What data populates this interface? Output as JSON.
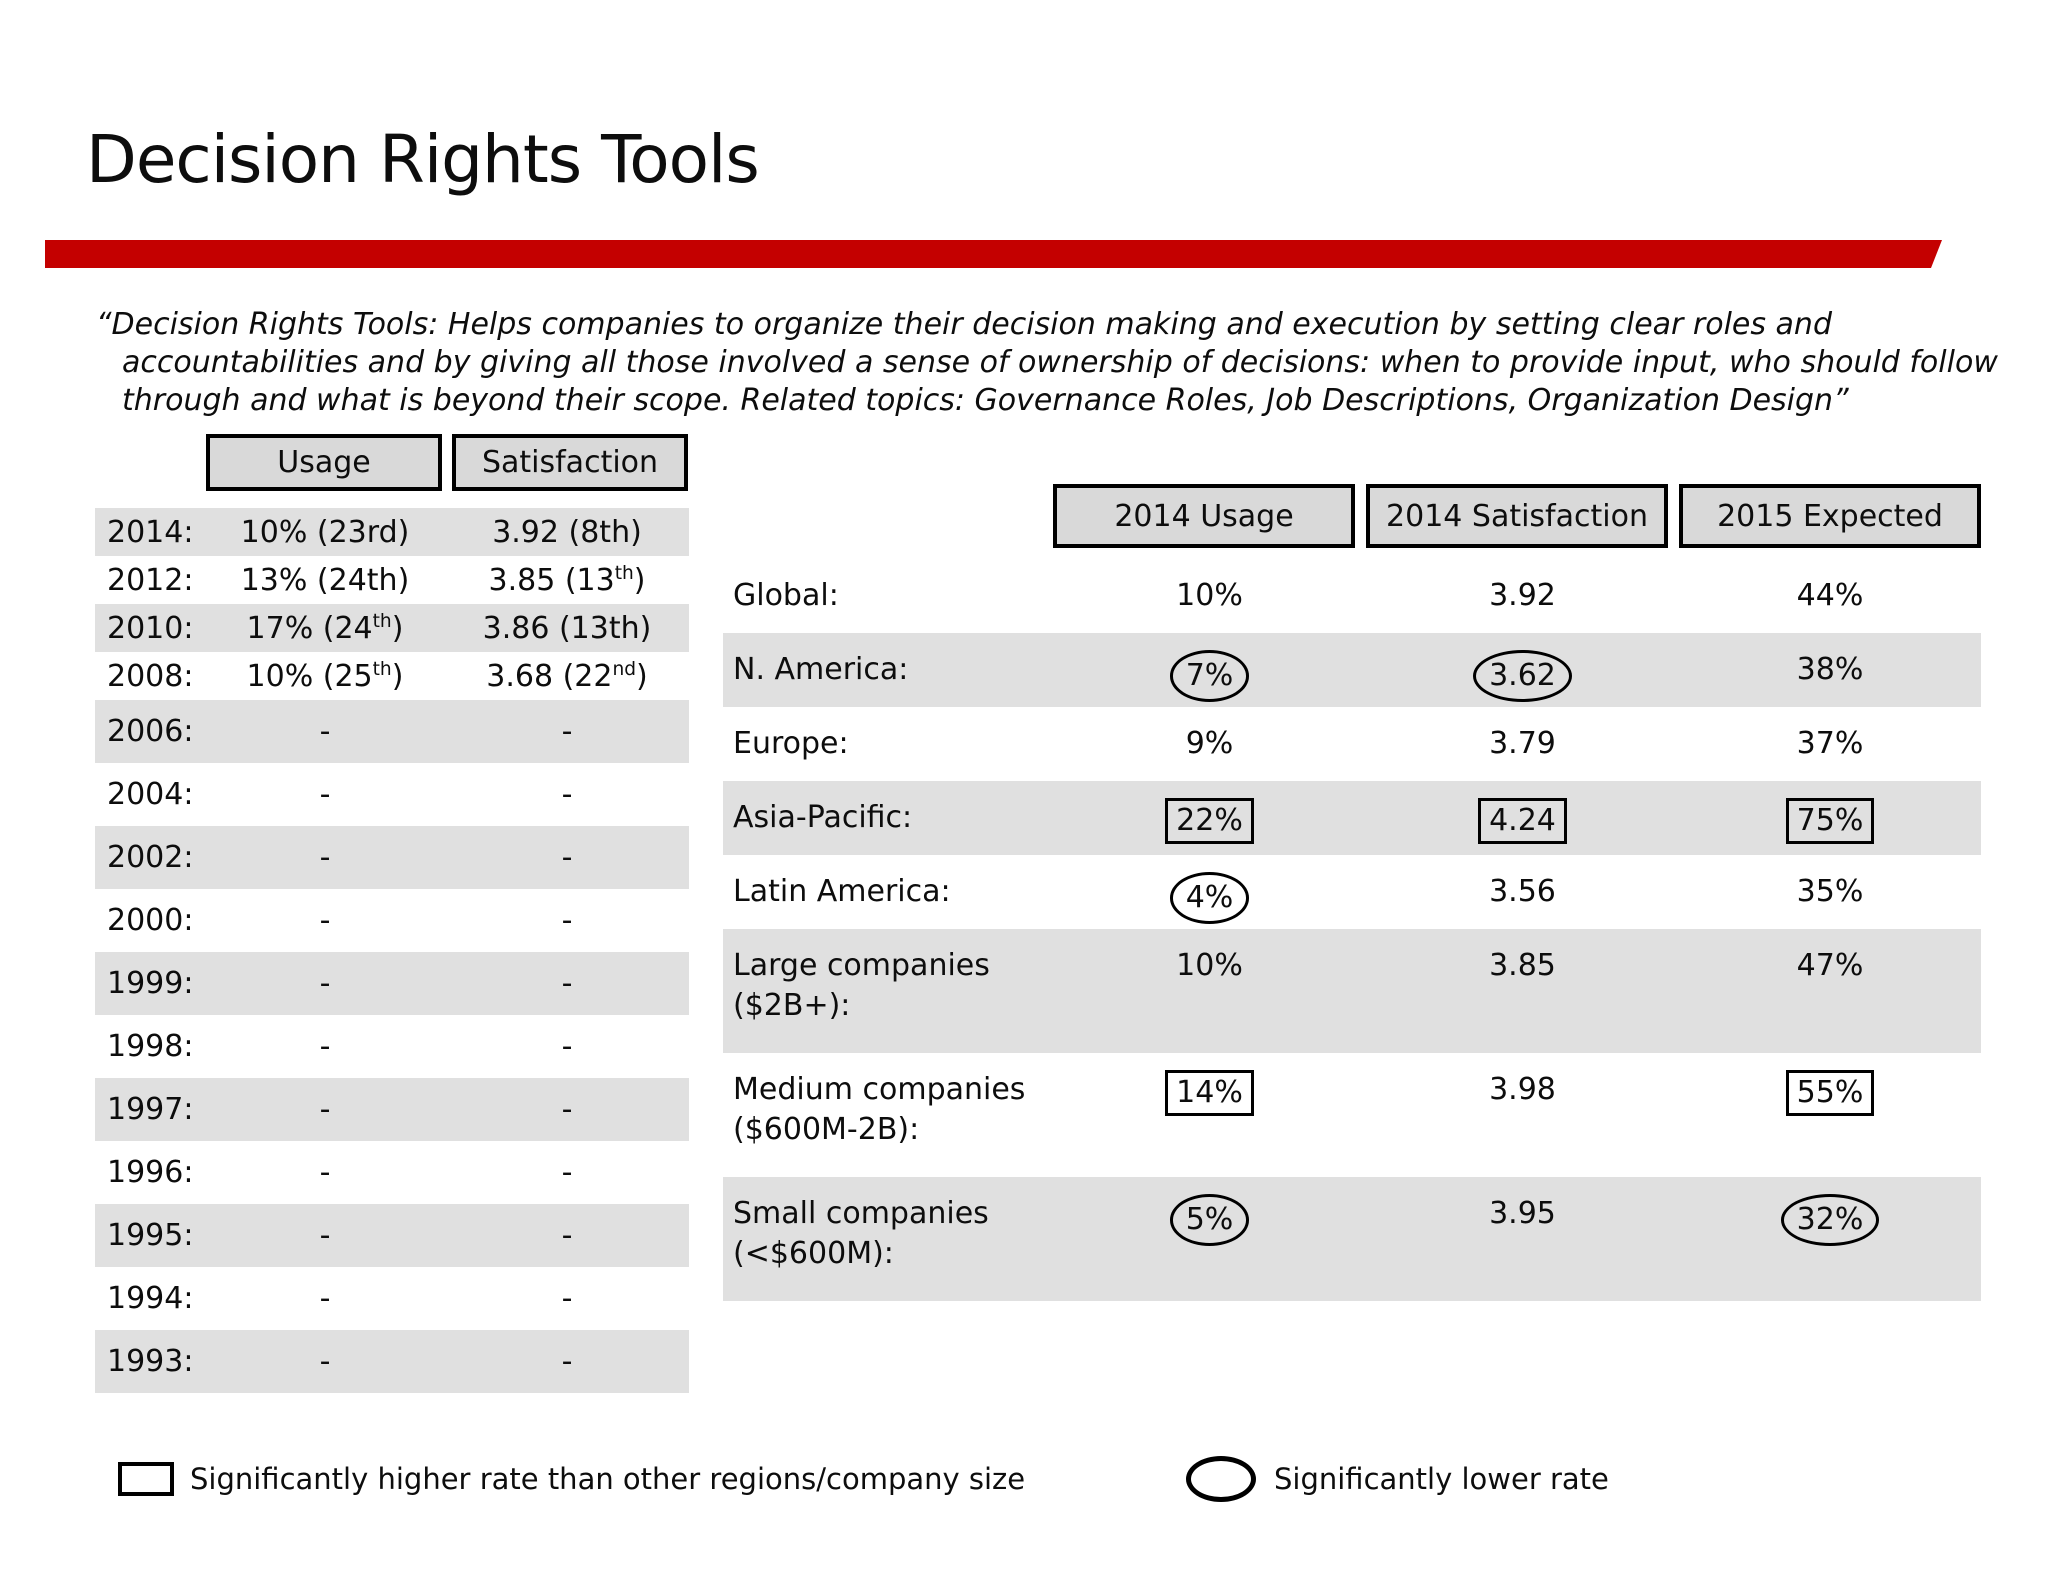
{
  "title": "Decision Rights Tools",
  "quote": "“Decision Rights Tools: Helps companies to organize their decision making and execution by setting clear roles and accountabilities and by giving all those involved a sense of ownership of decisions: when to provide input, who should follow through and what is beyond their scope. Related topics: Governance Roles, Job Descriptions, Organization Design”",
  "colors": {
    "accent": "#C40000",
    "band": "#E0E0E0",
    "header_fill": "#D9D9D9"
  },
  "history": {
    "headers": {
      "usage": "Usage",
      "satisfaction": "Satisfaction"
    },
    "rows": [
      {
        "year": "2014:",
        "usage": {
          "pre": "10% (23rd)",
          "sup": "",
          "post": ""
        },
        "satisfaction": {
          "pre": "3.92 (8th)",
          "sup": "",
          "post": ""
        }
      },
      {
        "year": "2012:",
        "usage": {
          "pre": "13% (24th)",
          "sup": "",
          "post": ""
        },
        "satisfaction": {
          "pre": "3.85 (13",
          "sup": "th",
          "post": ")"
        }
      },
      {
        "year": "2010:",
        "usage": {
          "pre": "17% (24",
          "sup": "th",
          "post": ")"
        },
        "satisfaction": {
          "pre": "3.86 (13th)",
          "sup": "",
          "post": ""
        }
      },
      {
        "year": "2008:",
        "usage": {
          "pre": "10% (25",
          "sup": "th",
          "post": ")"
        },
        "satisfaction": {
          "pre": "3.68 (22",
          "sup": "nd",
          "post": ")"
        }
      },
      {
        "year": "2006:",
        "usage": {
          "pre": "-",
          "sup": "",
          "post": ""
        },
        "satisfaction": {
          "pre": "-",
          "sup": "",
          "post": ""
        }
      },
      {
        "year": "2004:",
        "usage": {
          "pre": "-",
          "sup": "",
          "post": ""
        },
        "satisfaction": {
          "pre": "-",
          "sup": "",
          "post": ""
        }
      },
      {
        "year": "2002:",
        "usage": {
          "pre": "-",
          "sup": "",
          "post": ""
        },
        "satisfaction": {
          "pre": "-",
          "sup": "",
          "post": ""
        }
      },
      {
        "year": "2000:",
        "usage": {
          "pre": "-",
          "sup": "",
          "post": ""
        },
        "satisfaction": {
          "pre": "-",
          "sup": "",
          "post": ""
        }
      },
      {
        "year": "1999:",
        "usage": {
          "pre": "-",
          "sup": "",
          "post": ""
        },
        "satisfaction": {
          "pre": "-",
          "sup": "",
          "post": ""
        }
      },
      {
        "year": "1998:",
        "usage": {
          "pre": "-",
          "sup": "",
          "post": ""
        },
        "satisfaction": {
          "pre": "-",
          "sup": "",
          "post": ""
        }
      },
      {
        "year": "1997:",
        "usage": {
          "pre": "-",
          "sup": "",
          "post": ""
        },
        "satisfaction": {
          "pre": "-",
          "sup": "",
          "post": ""
        }
      },
      {
        "year": "1996:",
        "usage": {
          "pre": "-",
          "sup": "",
          "post": ""
        },
        "satisfaction": {
          "pre": "-",
          "sup": "",
          "post": ""
        }
      },
      {
        "year": "1995:",
        "usage": {
          "pre": "-",
          "sup": "",
          "post": ""
        },
        "satisfaction": {
          "pre": "-",
          "sup": "",
          "post": ""
        }
      },
      {
        "year": "1994:",
        "usage": {
          "pre": "-",
          "sup": "",
          "post": ""
        },
        "satisfaction": {
          "pre": "-",
          "sup": "",
          "post": ""
        }
      },
      {
        "year": "1993:",
        "usage": {
          "pre": "-",
          "sup": "",
          "post": ""
        },
        "satisfaction": {
          "pre": "-",
          "sup": "",
          "post": ""
        }
      }
    ]
  },
  "regional": {
    "headers": [
      "2014 Usage",
      "2014 Satisfaction",
      "2015 Expected"
    ],
    "rows": [
      {
        "label": "Global:",
        "usage": {
          "value": "10%",
          "marker": "none"
        },
        "satisfaction": {
          "value": "3.92",
          "marker": "none"
        },
        "expected": {
          "value": "44%",
          "marker": "none"
        }
      },
      {
        "label": "N. America:",
        "usage": {
          "value": "7%",
          "marker": "ellipse"
        },
        "satisfaction": {
          "value": "3.62",
          "marker": "ellipse"
        },
        "expected": {
          "value": "38%",
          "marker": "none"
        }
      },
      {
        "label": "Europe:",
        "usage": {
          "value": "9%",
          "marker": "none"
        },
        "satisfaction": {
          "value": "3.79",
          "marker": "none"
        },
        "expected": {
          "value": "37%",
          "marker": "none"
        }
      },
      {
        "label": "Asia-Pacific:",
        "usage": {
          "value": "22%",
          "marker": "box"
        },
        "satisfaction": {
          "value": "4.24",
          "marker": "box"
        },
        "expected": {
          "value": "75%",
          "marker": "box"
        }
      },
      {
        "label": "Latin America:",
        "usage": {
          "value": "4%",
          "marker": "ellipse"
        },
        "satisfaction": {
          "value": "3.56",
          "marker": "none"
        },
        "expected": {
          "value": "35%",
          "marker": "none"
        }
      },
      {
        "label": "Large companies ($2B+):",
        "usage": {
          "value": "10%",
          "marker": "none"
        },
        "satisfaction": {
          "value": "3.85",
          "marker": "none"
        },
        "expected": {
          "value": "47%",
          "marker": "none"
        }
      },
      {
        "label": "Medium companies ($600M-2B):",
        "usage": {
          "value": "14%",
          "marker": "box"
        },
        "satisfaction": {
          "value": "3.98",
          "marker": "none"
        },
        "expected": {
          "value": "55%",
          "marker": "box"
        }
      },
      {
        "label": "Small companies (<$600M):",
        "usage": {
          "value": "5%",
          "marker": "ellipse"
        },
        "satisfaction": {
          "value": "3.95",
          "marker": "none"
        },
        "expected": {
          "value": "32%",
          "marker": "ellipse"
        }
      }
    ]
  },
  "legend": {
    "higher_label": "Significantly higher rate than other regions/company size",
    "lower_label": "Significantly lower rate"
  }
}
